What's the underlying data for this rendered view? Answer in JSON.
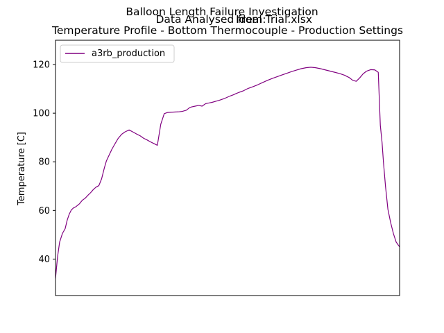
{
  "chart_data": {
    "type": "line",
    "title_lines": [
      "Balloon Length Failure Investigation",
      "Data Analysed from:",
      "Ideal Trial.xlsx",
      "Temperature Profile - Bottom Thermocouple - Production Settings"
    ],
    "xlabel": "",
    "ylabel": "Temperature [C]",
    "x_ticks_visible": false,
    "xlim": [
      0,
      100
    ],
    "ylim": [
      25,
      130
    ],
    "y_ticks": [
      40,
      60,
      80,
      100,
      120
    ],
    "legend_position": "top-left",
    "grid": false,
    "series": [
      {
        "name": "a3rb_production",
        "color": "#800080",
        "x": [
          0,
          0.6,
          1.2,
          2.0,
          2.8,
          3.4,
          4.0,
          4.6,
          5.2,
          6.0,
          7.0,
          7.8,
          8.6,
          9.4,
          10.2,
          11.0,
          11.8,
          12.6,
          13.4,
          14.2,
          14.8,
          15.6,
          16.4,
          17.2,
          18.2,
          19.2,
          20.2,
          21.4,
          22.6,
          23.6,
          24.6,
          25.6,
          26.6,
          27.6,
          28.6,
          29.6,
          30.6,
          31.6,
          32.6,
          33.6,
          35.0,
          36.0,
          36.6,
          37.0,
          38.0,
          39.0,
          39.6,
          40.6,
          41.6,
          42.6,
          43.6,
          44.6,
          45.6,
          46.6,
          47.6,
          48.4,
          49.2,
          50.0,
          50.8,
          51.6,
          52.4,
          53.4,
          54.6,
          56.0,
          57.4,
          58.8,
          60.2,
          61.6,
          63.0,
          64.4,
          65.8,
          67.2,
          68.6,
          70.0,
          71.4,
          72.8,
          74.2,
          75.6,
          77.0,
          78.4,
          79.8,
          81.2,
          82.6,
          84.0,
          85.4,
          86.4,
          87.4,
          88.4,
          89.4,
          90.4,
          91.6,
          92.8,
          93.8,
          94.4,
          94.9,
          95.3,
          95.9,
          96.6,
          97.4,
          98.2,
          99.0,
          100
        ],
        "values": [
          32,
          41,
          47,
          50.5,
          52.5,
          56,
          58.5,
          60.2,
          61,
          61.6,
          62.8,
          64.2,
          65,
          66.2,
          67.3,
          68.6,
          69.6,
          70.2,
          73,
          77.5,
          80.4,
          82.8,
          85.2,
          87.2,
          89.6,
          91.3,
          92.3,
          93.1,
          92.2,
          91.4,
          90.7,
          89.7,
          89.0,
          88.2,
          87.5,
          86.8,
          95.5,
          99.8,
          100.3,
          100.4,
          100.5,
          100.6,
          100.7,
          100.8,
          101.2,
          102.3,
          102.6,
          102.9,
          103.2,
          102.9,
          103.9,
          104.2,
          104.5,
          104.9,
          105.3,
          105.7,
          106.1,
          106.6,
          107.1,
          107.5,
          108.0,
          108.6,
          109.2,
          110.2,
          110.9,
          111.7,
          112.6,
          113.5,
          114.3,
          115.0,
          115.7,
          116.4,
          117.1,
          117.7,
          118.3,
          118.7,
          118.9,
          118.7,
          118.3,
          117.8,
          117.3,
          116.8,
          116.3,
          115.6,
          114.6,
          113.5,
          113.1,
          114.5,
          116.2,
          117.3,
          117.9,
          117.8,
          116.8,
          95.0,
          88.0,
          80.0,
          70.0,
          60.5,
          55.0,
          50.5,
          47.0,
          45.0
        ]
      }
    ]
  }
}
